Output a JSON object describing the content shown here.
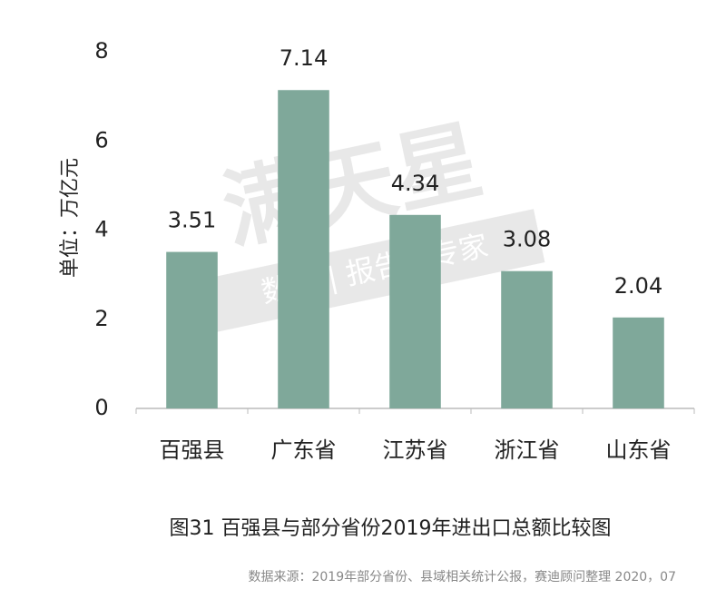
{
  "chart_data": {
    "type": "bar",
    "y_label": "单位：万亿元",
    "caption": "图31 百强县与部分省份2019年进出口总额比较图",
    "source": "数据来源：2019年部分省份、县域相关统计公报，赛迪顾问整理 2020，07",
    "watermark": "满天星",
    "watermark_sub": "数据 | 报告 | 专家",
    "categories": [
      "百强县",
      "广东省",
      "江苏省",
      "浙江省",
      "山东省"
    ],
    "values": [
      3.51,
      7.14,
      4.34,
      3.08,
      2.04
    ],
    "color": "#7fa89a",
    "ylim": [
      0,
      8
    ],
    "yticks": [
      0,
      2,
      4,
      6,
      8
    ],
    "grid": false
  }
}
